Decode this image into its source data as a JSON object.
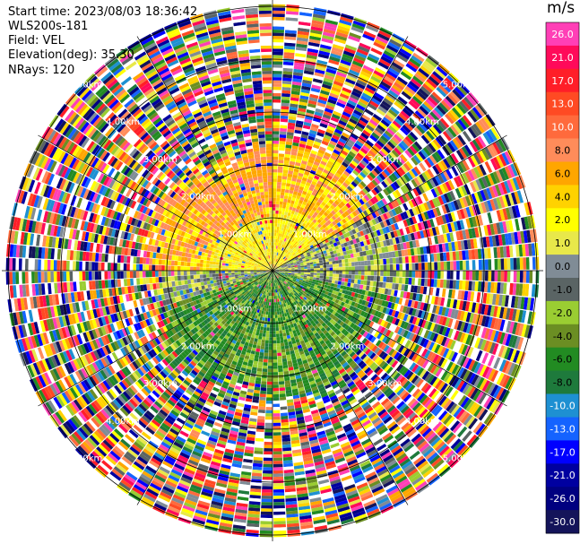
{
  "header": {
    "start_time": "Start time: 2023/08/03 18:36:42",
    "instrument": "WLS200s-181",
    "field": "Field: VEL",
    "elevation": "Elevation(deg): 35.30",
    "nrays": "NRays: 120"
  },
  "colorbar": {
    "unit": "m/s",
    "ticks": [
      "26.0",
      "21.0",
      "17.0",
      "13.0",
      "10.0",
      "8.0",
      "6.0",
      "4.0",
      "2.0",
      "1.0",
      "0.0",
      "-1.0",
      "-2.0",
      "-4.0",
      "-6.0",
      "-8.0",
      "-10.0",
      "-13.0",
      "-17.0",
      "-21.0",
      "-26.0",
      "-30.0"
    ],
    "colors": [
      "#ff3fb6",
      "#ff0a5a",
      "#ff1e28",
      "#ff4a23",
      "#ff6a3c",
      "#ff8c5a",
      "#ffa600",
      "#ffd200",
      "#ffff00",
      "#e8e84a",
      "#808c96",
      "#5a6464",
      "#9acd32",
      "#6b8e23",
      "#228b22",
      "#1e7a3c",
      "#1e90d2",
      "#1463ff",
      "#0000ff",
      "#0000a0",
      "#000080",
      "#14145a"
    ]
  },
  "chart_data": {
    "type": "heatmap",
    "projection": "polar PPI",
    "field": "VEL",
    "units": "m/s",
    "elevation_deg": 35.3,
    "n_rays": 120,
    "range_rings_km": [
      1.0,
      2.0,
      3.0,
      4.0,
      5.0
    ],
    "range_labels": [
      "1.00km",
      "2.00km",
      "3.00km",
      "4.00km",
      "5.00km"
    ],
    "value_range": [
      -30.0,
      26.0
    ],
    "pattern": {
      "inner_region_km": 2.3,
      "north_west_sector": "positive 2-10 m/s",
      "south_sector": "negative -2 to -8 m/s",
      "east_sector": "near zero 0 to 2 m/s",
      "outer_region": "noise spanning full value range"
    }
  }
}
